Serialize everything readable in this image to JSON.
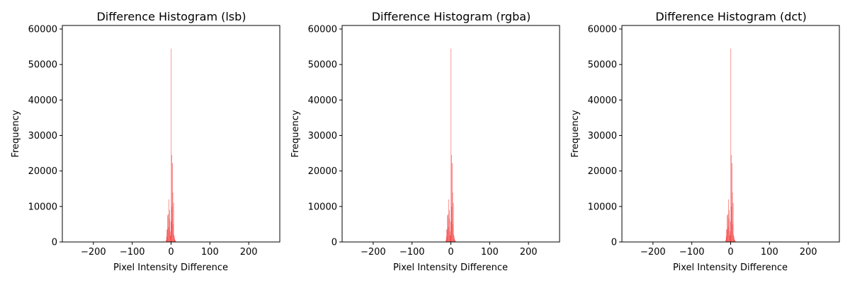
{
  "chart_data": [
    {
      "type": "bar",
      "title": "Difference Histogram (lsb)",
      "xlabel": "Pixel Intensity Difference",
      "ylabel": "Frequency",
      "xlim": [
        -280,
        280
      ],
      "ylim": [
        0,
        61000
      ],
      "xticks": [
        "−200",
        "−100",
        "0",
        "100",
        "200"
      ],
      "xtick_values": [
        -200,
        -100,
        0,
        100,
        200
      ],
      "yticks": [
        "0",
        "10000",
        "20000",
        "30000",
        "40000",
        "50000",
        "60000"
      ],
      "ytick_values": [
        0,
        10000,
        20000,
        30000,
        40000,
        50000,
        60000
      ],
      "bar_color": "#f45050",
      "x": [
        -13,
        -12,
        -11,
        -10,
        -9,
        -8,
        -7,
        -6,
        -5,
        -4,
        -3,
        -2,
        -1,
        0,
        1,
        2,
        3,
        4,
        5,
        6,
        7,
        8,
        9,
        10,
        11,
        12
      ],
      "values": [
        600,
        3500,
        1500,
        7500,
        3500,
        7800,
        4200,
        12000,
        6500,
        9000,
        3000,
        1800,
        5800,
        54500,
        24500,
        10000,
        22200,
        14000,
        5000,
        11000,
        2000,
        1500,
        800,
        500,
        300,
        150
      ]
    },
    {
      "type": "bar",
      "title": "Difference Histogram (rgba)",
      "xlabel": "Pixel Intensity Difference",
      "ylabel": "Frequency",
      "xlim": [
        -280,
        280
      ],
      "ylim": [
        0,
        61000
      ],
      "xticks": [
        "−200",
        "−100",
        "0",
        "100",
        "200"
      ],
      "xtick_values": [
        -200,
        -100,
        0,
        100,
        200
      ],
      "yticks": [
        "0",
        "10000",
        "20000",
        "30000",
        "40000",
        "50000",
        "60000"
      ],
      "ytick_values": [
        0,
        10000,
        20000,
        30000,
        40000,
        50000,
        60000
      ],
      "bar_color": "#f45050",
      "x": [
        -13,
        -12,
        -11,
        -10,
        -9,
        -8,
        -7,
        -6,
        -5,
        -4,
        -3,
        -2,
        -1,
        0,
        1,
        2,
        3,
        4,
        5,
        6,
        7,
        8,
        9,
        10,
        11,
        12
      ],
      "values": [
        600,
        3500,
        1500,
        7500,
        3500,
        7800,
        4200,
        12000,
        6500,
        9000,
        3000,
        1800,
        5800,
        54500,
        24500,
        10000,
        22200,
        14000,
        5000,
        11000,
        2000,
        1500,
        800,
        500,
        300,
        150
      ]
    },
    {
      "type": "bar",
      "title": "Difference Histogram (dct)",
      "xlabel": "Pixel Intensity Difference",
      "ylabel": "Frequency",
      "xlim": [
        -280,
        280
      ],
      "ylim": [
        0,
        61000
      ],
      "xticks": [
        "−200",
        "−100",
        "0",
        "100",
        "200"
      ],
      "xtick_values": [
        -200,
        -100,
        0,
        100,
        200
      ],
      "yticks": [
        "0",
        "10000",
        "20000",
        "30000",
        "40000",
        "50000",
        "60000"
      ],
      "ytick_values": [
        0,
        10000,
        20000,
        30000,
        40000,
        50000,
        60000
      ],
      "bar_color": "#f45050",
      "x": [
        -13,
        -12,
        -11,
        -10,
        -9,
        -8,
        -7,
        -6,
        -5,
        -4,
        -3,
        -2,
        -1,
        0,
        1,
        2,
        3,
        4,
        5,
        6,
        7,
        8,
        9,
        10,
        11,
        12
      ],
      "values": [
        600,
        3500,
        1500,
        7500,
        3500,
        7800,
        4200,
        12000,
        6500,
        9000,
        3000,
        1800,
        5800,
        54500,
        24500,
        10000,
        22200,
        14000,
        5000,
        11000,
        2000,
        1500,
        800,
        500,
        300,
        150
      ]
    }
  ]
}
